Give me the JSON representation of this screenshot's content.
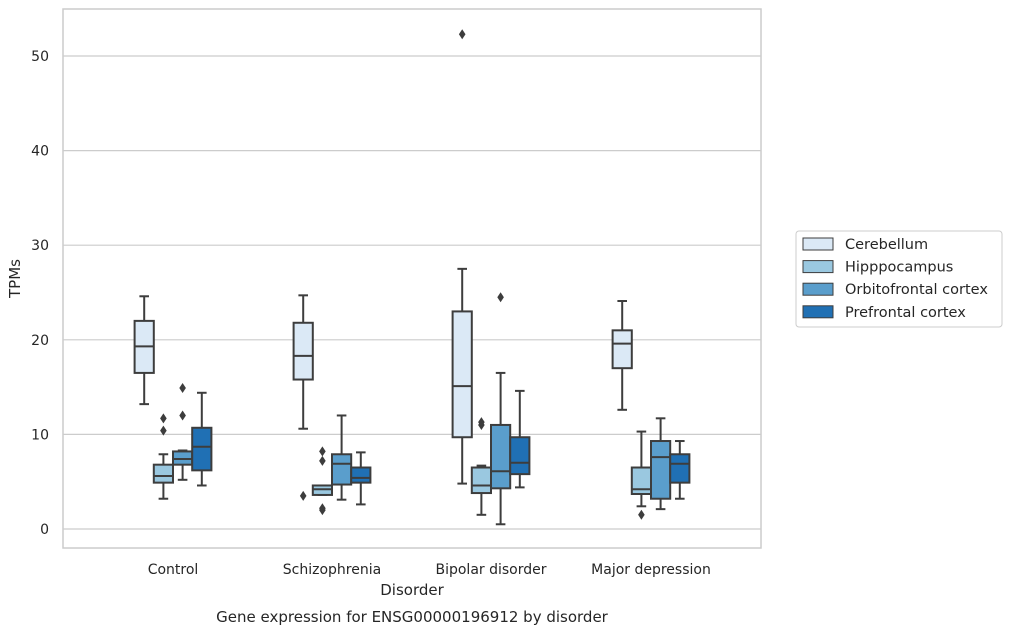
{
  "chart_data": {
    "type": "box",
    "title": "",
    "caption": "Gene expression for ENSG00000196912 by disorder",
    "xlabel": "Disorder",
    "ylabel": "TPMs",
    "ylim": [
      -2,
      55
    ],
    "yticks": [
      0,
      10,
      20,
      30,
      40,
      50
    ],
    "grid": "horizontal",
    "legend_position": "right",
    "categories": [
      "Control",
      "Schizophrenia",
      "Bipolar disorder",
      "Major depression"
    ],
    "series": [
      {
        "name": "Cerebellum",
        "color": "#dbe9f6",
        "boxes": [
          {
            "whislo": 13.2,
            "q1": 16.5,
            "med": 19.3,
            "q3": 22.0,
            "whishi": 24.6,
            "fliers": []
          },
          {
            "whislo": 10.6,
            "q1": 15.8,
            "med": 18.3,
            "q3": 21.8,
            "whishi": 24.7,
            "fliers": [
              3.5
            ]
          },
          {
            "whislo": 4.8,
            "q1": 9.7,
            "med": 15.1,
            "q3": 23.0,
            "whishi": 27.5,
            "fliers": [
              52.3
            ]
          },
          {
            "whislo": 12.6,
            "q1": 17.0,
            "med": 19.6,
            "q3": 21.0,
            "whishi": 24.1,
            "fliers": []
          }
        ]
      },
      {
        "name": "Hipppocampus",
        "color": "#9ac8e0",
        "boxes": [
          {
            "whislo": 3.2,
            "q1": 4.9,
            "med": 5.6,
            "q3": 6.8,
            "whishi": 7.9,
            "fliers": [
              10.4,
              11.7
            ]
          },
          {
            "whislo": 3.6,
            "q1": 3.6,
            "med": 4.2,
            "q3": 4.6,
            "whishi": 4.6,
            "fliers": [
              2.0,
              2.2,
              7.2,
              8.2
            ]
          },
          {
            "whislo": 1.5,
            "q1": 3.8,
            "med": 4.6,
            "q3": 6.5,
            "whishi": 6.7,
            "fliers": [
              11.0,
              11.3
            ]
          },
          {
            "whislo": 2.4,
            "q1": 3.7,
            "med": 4.2,
            "q3": 6.5,
            "whishi": 10.3,
            "fliers": [
              1.5
            ]
          }
        ]
      },
      {
        "name": "Orbitofrontal cortex",
        "color": "#5a9ecc",
        "boxes": [
          {
            "whislo": 5.2,
            "q1": 6.8,
            "med": 7.4,
            "q3": 8.2,
            "whishi": 8.3,
            "fliers": [
              12.0,
              14.9
            ]
          },
          {
            "whislo": 3.1,
            "q1": 4.7,
            "med": 6.9,
            "q3": 7.9,
            "whishi": 12.0,
            "fliers": []
          },
          {
            "whislo": 0.5,
            "q1": 4.3,
            "med": 6.1,
            "q3": 11.0,
            "whishi": 16.5,
            "fliers": [
              24.5
            ]
          },
          {
            "whislo": 2.1,
            "q1": 3.2,
            "med": 7.6,
            "q3": 9.3,
            "whishi": 11.7,
            "fliers": []
          }
        ]
      },
      {
        "name": "Prefrontal cortex",
        "color": "#2070b4",
        "boxes": [
          {
            "whislo": 4.6,
            "q1": 6.2,
            "med": 8.7,
            "q3": 10.7,
            "whishi": 14.4,
            "fliers": []
          },
          {
            "whislo": 2.6,
            "q1": 4.9,
            "med": 5.4,
            "q3": 6.5,
            "whishi": 8.1,
            "fliers": []
          },
          {
            "whislo": 4.4,
            "q1": 5.8,
            "med": 7.0,
            "q3": 9.7,
            "whishi": 14.6,
            "fliers": []
          },
          {
            "whislo": 3.2,
            "q1": 4.9,
            "med": 6.9,
            "q3": 7.9,
            "whishi": 9.3,
            "fliers": []
          }
        ]
      }
    ]
  }
}
